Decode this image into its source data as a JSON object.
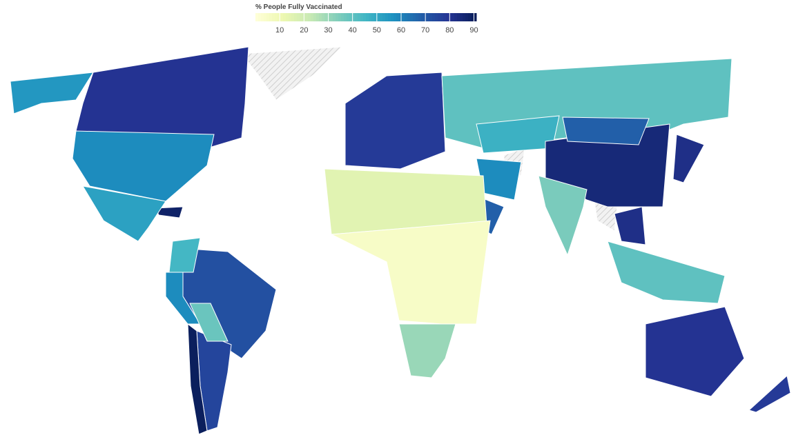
{
  "map": {
    "legend": {
      "title": "% People Fully Vaccinated",
      "lim": [
        0,
        91
      ],
      "ticks": [
        10,
        20,
        30,
        40,
        50,
        60,
        70,
        80,
        90
      ],
      "colors": [
        "#ffffd9",
        "#edf8b1",
        "#c7e9b4",
        "#7fcdbb",
        "#41b6c4",
        "#1d91c0",
        "#225ea8",
        "#253494",
        "#081d58"
      ]
    },
    "regions": [
      80,
      55,
      58,
      88,
      52,
      72,
      75,
      90,
      58,
      45,
      38,
      78,
      40,
      47,
      85,
      68,
      35,
      68,
      58,
      15,
      5,
      30,
      40,
      82,
      80,
      78,
      82
    ]
  }
}
